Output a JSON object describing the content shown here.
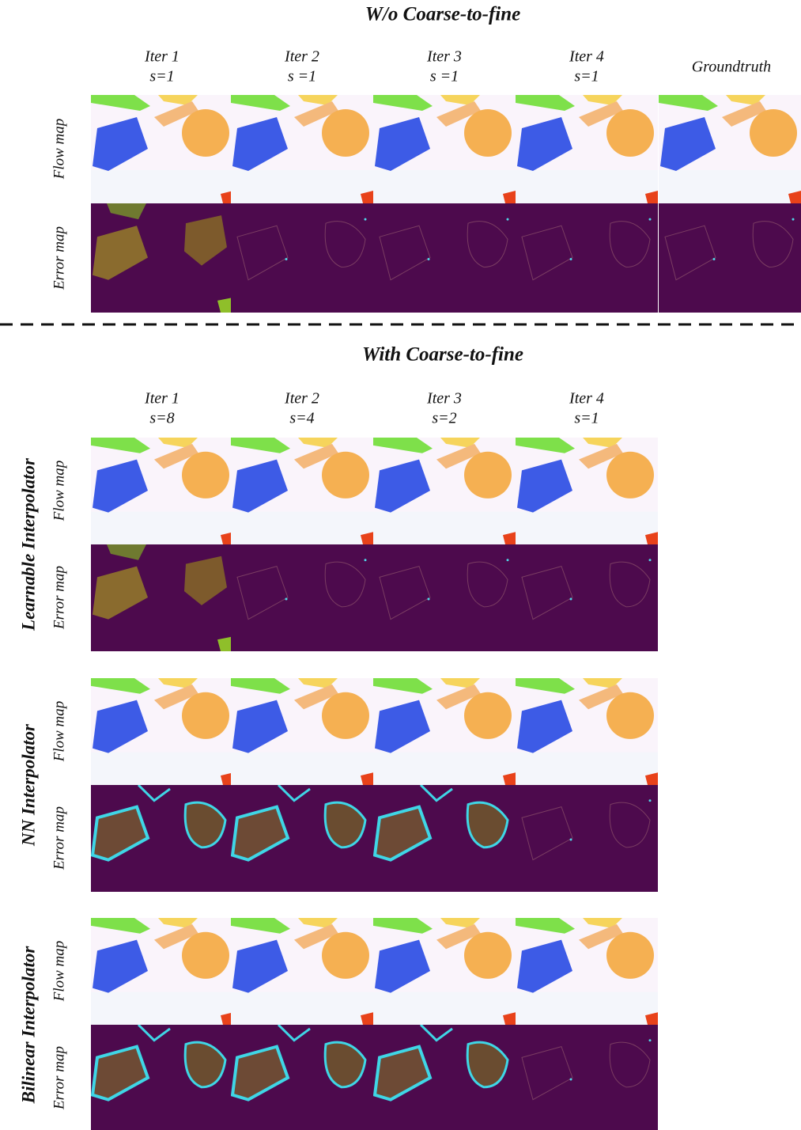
{
  "top": {
    "title": "W/o Coarse-to-fine",
    "columns": [
      {
        "iter": "Iter 1",
        "scale": "s=1"
      },
      {
        "iter": "Iter 2",
        "scale": "s =1"
      },
      {
        "iter": "Iter 3",
        "scale": "s =1"
      },
      {
        "iter": "Iter 4",
        "scale": "s=1"
      }
    ],
    "groundtruth": "Groundtruth",
    "rows": [
      "Flow map",
      "Error map"
    ]
  },
  "bottom": {
    "title": "With Coarse-to-fine",
    "columns": [
      {
        "iter": "Iter 1",
        "scale": "s=8"
      },
      {
        "iter": "Iter 2",
        "scale": "s=4"
      },
      {
        "iter": "Iter 3",
        "scale": "s=2"
      },
      {
        "iter": "Iter 4",
        "scale": "s=1"
      }
    ],
    "groups": [
      {
        "label": "Learnable Interpolator",
        "rows": [
          "Flow map",
          "Error map"
        ]
      },
      {
        "label": "NN Interpolator",
        "rows": [
          "Flow map",
          "Error map"
        ]
      },
      {
        "label": "Bilinear Interpolator",
        "rows": [
          "Flow map",
          "Error map"
        ]
      }
    ]
  }
}
